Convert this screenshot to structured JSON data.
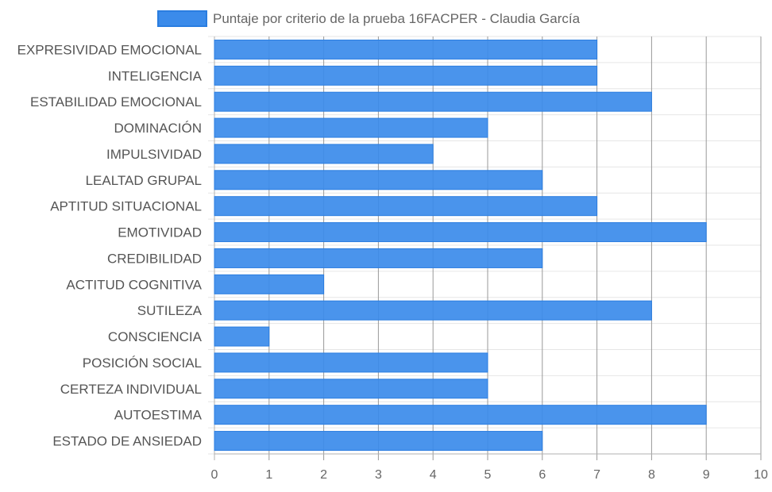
{
  "chart_data": {
    "type": "bar",
    "orientation": "horizontal",
    "categories": [
      "EXPRESIVIDAD EMOCIONAL",
      "INTELIGENCIA",
      "ESTABILIDAD EMOCIONAL",
      "DOMINACIÓN",
      "IMPULSIVIDAD",
      "LEALTAD GRUPAL",
      "APTITUD SITUACIONAL",
      "EMOTIVIDAD",
      "CREDIBILIDAD",
      "ACTITUD COGNITIVA",
      "SUTILEZA",
      "CONSCIENCIA",
      "POSICIÓN SOCIAL",
      "CERTEZA INDIVIDUAL",
      "AUTOESTIMA",
      "ESTADO DE ANSIEDAD"
    ],
    "series": [
      {
        "name": "Puntaje por criterio de la prueba 16FACPER - Claudia García",
        "values": [
          7,
          7,
          8,
          5,
          4,
          6,
          7,
          9,
          6,
          2,
          8,
          1,
          5,
          5,
          9,
          6
        ],
        "color": "#3b8bea"
      }
    ],
    "xlim": [
      0,
      10
    ],
    "xticks": [
      "0",
      "1",
      "2",
      "3",
      "4",
      "5",
      "6",
      "7",
      "8",
      "9",
      "10"
    ],
    "grid": true,
    "legend_position": "top"
  }
}
